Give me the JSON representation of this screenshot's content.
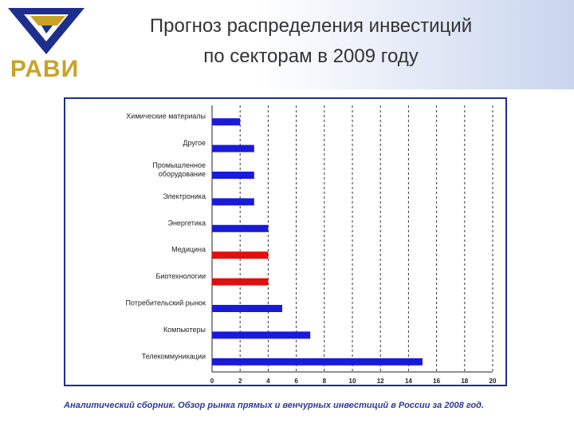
{
  "header": {
    "logo_text": "РАВИ",
    "title_line1": "Прогноз распределения инвестиций",
    "title_line2": "по секторам в 2009 году"
  },
  "source": "Аналитический сборник. Обзор рынка прямых и венчурных инвестиций в России за 2008 год.",
  "colors": {
    "bar": "#1a1adb",
    "highlight": "#e01010",
    "frame": "#1d2e8c"
  },
  "chart_data": {
    "type": "bar",
    "orientation": "horizontal",
    "title": "",
    "xlabel": "",
    "ylabel": "",
    "xlim": [
      0,
      20
    ],
    "x_ticks": [
      "0",
      "2",
      "4",
      "6",
      "8",
      "10",
      "12",
      "14",
      "16",
      "18",
      "20"
    ],
    "grid": "vertical-dashed",
    "categories": [
      [
        "Химические материалы"
      ],
      [
        "Другое"
      ],
      [
        "Промышленное",
        "оборудование"
      ],
      [
        "Электроника"
      ],
      [
        "Энергетика"
      ],
      [
        "Медицина"
      ],
      [
        "Биотехнологии"
      ],
      [
        "Потребительский рынок"
      ],
      [
        "Компьютеры"
      ],
      [
        "Телекоммуникации"
      ]
    ],
    "values": [
      2,
      3,
      3,
      3,
      4,
      4,
      4,
      5,
      7,
      15
    ],
    "highlighted": [
      false,
      false,
      false,
      false,
      false,
      true,
      true,
      false,
      false,
      false
    ]
  }
}
